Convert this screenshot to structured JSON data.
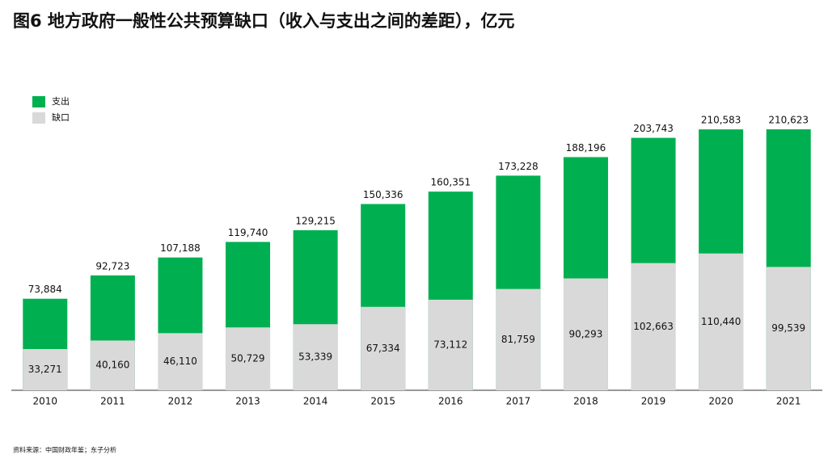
{
  "chart_data": {
    "type": "bar_overlap",
    "title": "图6 地方政府一般性公共预算缺口（收入与支出之间的差距），亿元",
    "categories": [
      "2010",
      "2011",
      "2012",
      "2013",
      "2014",
      "2015",
      "2016",
      "2017",
      "2018",
      "2019",
      "2020",
      "2021"
    ],
    "series": [
      {
        "name": "支出",
        "color": "#00b050",
        "values": [
          73884,
          92723,
          107188,
          119740,
          129215,
          150336,
          160351,
          173228,
          188196,
          203743,
          210583,
          210623
        ],
        "value_labels": [
          "73,884",
          "92,723",
          "107,188",
          "119,740",
          "129,215",
          "150,336",
          "160,351",
          "173,228",
          "188,196",
          "203,743",
          "210,583",
          "210,623"
        ]
      },
      {
        "name": "缺口",
        "color": "#d9d9d9",
        "values": [
          33271,
          40160,
          46110,
          50729,
          53339,
          67334,
          73112,
          81759,
          90293,
          102663,
          110440,
          99539
        ],
        "value_labels": [
          "33,271",
          "40,160",
          "46,110",
          "50,729",
          "53,339",
          "67,334",
          "73,112",
          "81,759",
          "90,293",
          "102,663",
          "110,440",
          "99,539"
        ]
      }
    ],
    "ylim": [
      0,
      240000
    ],
    "source": "资料来源：中国财政年鉴；东子分析"
  }
}
